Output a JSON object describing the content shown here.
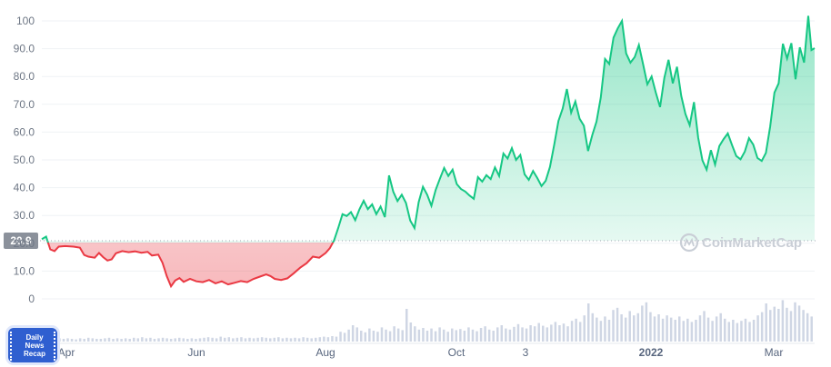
{
  "chart_data": {
    "type": "area",
    "x_ticks": [
      "Apr",
      "Jun",
      "Aug",
      "Oct",
      "3",
      "2022",
      "Mar"
    ],
    "y_ticks": [
      "100",
      "90.0",
      "80.0",
      "70.0",
      "60.0",
      "50.0",
      "40.0",
      "30.0",
      "20.0",
      "10.0",
      "0"
    ],
    "ylim": [
      0,
      100
    ],
    "baseline": {
      "value": 20.9,
      "label": "20.9"
    },
    "x_range_days": [
      0,
      365
    ],
    "series": [
      {
        "points": [
          [
            0,
            21.5
          ],
          [
            2,
            22.4
          ],
          [
            4,
            17.8
          ],
          [
            6,
            17.2
          ],
          [
            8,
            18.8
          ],
          [
            11,
            19.0
          ],
          [
            15,
            18.8
          ],
          [
            18,
            18.4
          ],
          [
            20,
            15.8
          ],
          [
            22,
            15.2
          ],
          [
            25,
            14.8
          ],
          [
            27,
            16.5
          ],
          [
            29,
            15.0
          ],
          [
            31,
            13.8
          ],
          [
            33,
            14.2
          ],
          [
            35,
            16.4
          ],
          [
            38,
            17.2
          ],
          [
            41,
            16.8
          ],
          [
            44,
            17.1
          ],
          [
            47,
            16.6
          ],
          [
            50,
            16.9
          ],
          [
            52,
            15.6
          ],
          [
            55,
            15.9
          ],
          [
            57,
            13.0
          ],
          [
            58,
            10.6
          ],
          [
            59,
            8.2
          ],
          [
            61,
            4.5
          ],
          [
            63,
            6.6
          ],
          [
            65,
            7.5
          ],
          [
            67,
            6.1
          ],
          [
            70,
            7.2
          ],
          [
            73,
            6.3
          ],
          [
            76,
            6.0
          ],
          [
            79,
            6.8
          ],
          [
            82,
            5.6
          ],
          [
            85,
            6.3
          ],
          [
            88,
            5.2
          ],
          [
            91,
            5.8
          ],
          [
            94,
            6.4
          ],
          [
            97,
            6.0
          ],
          [
            100,
            7.2
          ],
          [
            103,
            8.0
          ],
          [
            106,
            8.8
          ],
          [
            108,
            8.2
          ],
          [
            110,
            7.2
          ],
          [
            113,
            6.8
          ],
          [
            116,
            7.4
          ],
          [
            119,
            9.2
          ],
          [
            122,
            11.2
          ],
          [
            125,
            12.8
          ],
          [
            128,
            15.2
          ],
          [
            131,
            14.8
          ],
          [
            134,
            16.5
          ],
          [
            136,
            18.2
          ],
          [
            138,
            21.0
          ],
          [
            140,
            25.5
          ],
          [
            142,
            30.5
          ],
          [
            144,
            29.8
          ],
          [
            146,
            31.2
          ],
          [
            148,
            28.3
          ],
          [
            150,
            32.2
          ],
          [
            152,
            35.3
          ],
          [
            154,
            32.3
          ],
          [
            156,
            34.0
          ],
          [
            158,
            30.5
          ],
          [
            160,
            33.2
          ],
          [
            162,
            29.4
          ],
          [
            164,
            44.4
          ],
          [
            166,
            38.5
          ],
          [
            168,
            35.2
          ],
          [
            170,
            37.5
          ],
          [
            172,
            34.5
          ],
          [
            174,
            28.2
          ],
          [
            176,
            25.5
          ],
          [
            178,
            34.8
          ],
          [
            180,
            40.3
          ],
          [
            182,
            37.5
          ],
          [
            184,
            33.5
          ],
          [
            186,
            39.2
          ],
          [
            188,
            43.2
          ],
          [
            190,
            47.1
          ],
          [
            192,
            44.2
          ],
          [
            194,
            46.5
          ],
          [
            196,
            41.3
          ],
          [
            198,
            39.5
          ],
          [
            200,
            38.6
          ],
          [
            202,
            37.2
          ],
          [
            204,
            36.0
          ],
          [
            206,
            43.8
          ],
          [
            208,
            42.2
          ],
          [
            210,
            44.5
          ],
          [
            212,
            43.1
          ],
          [
            214,
            47.3
          ],
          [
            216,
            44.2
          ],
          [
            218,
            52.3
          ],
          [
            220,
            50.5
          ],
          [
            222,
            54.2
          ],
          [
            224,
            50.0
          ],
          [
            226,
            51.8
          ],
          [
            228,
            44.8
          ],
          [
            230,
            42.8
          ],
          [
            232,
            46.0
          ],
          [
            234,
            43.5
          ],
          [
            236,
            40.6
          ],
          [
            238,
            42.5
          ],
          [
            240,
            47.5
          ],
          [
            242,
            55.5
          ],
          [
            244,
            64.0
          ],
          [
            246,
            68.5
          ],
          [
            248,
            75.5
          ],
          [
            250,
            67.0
          ],
          [
            252,
            71.0
          ],
          [
            254,
            64.8
          ],
          [
            256,
            62.3
          ],
          [
            258,
            53.2
          ],
          [
            260,
            59.0
          ],
          [
            262,
            63.8
          ],
          [
            264,
            72.5
          ],
          [
            266,
            86.3
          ],
          [
            268,
            84.5
          ],
          [
            270,
            94.0
          ],
          [
            272,
            97.3
          ],
          [
            274,
            100.0
          ],
          [
            276,
            88.3
          ],
          [
            278,
            85.0
          ],
          [
            280,
            87.0
          ],
          [
            282,
            91.3
          ],
          [
            284,
            84.3
          ],
          [
            286,
            77.2
          ],
          [
            288,
            80.0
          ],
          [
            290,
            74.2
          ],
          [
            292,
            69.0
          ],
          [
            294,
            79.5
          ],
          [
            296,
            86.0
          ],
          [
            298,
            77.5
          ],
          [
            300,
            83.5
          ],
          [
            302,
            73.0
          ],
          [
            304,
            66.5
          ],
          [
            306,
            62.5
          ],
          [
            308,
            70.8
          ],
          [
            310,
            58.0
          ],
          [
            312,
            49.8
          ],
          [
            314,
            46.5
          ],
          [
            316,
            53.5
          ],
          [
            318,
            48.3
          ],
          [
            320,
            55.0
          ],
          [
            322,
            57.5
          ],
          [
            324,
            59.5
          ],
          [
            326,
            55.3
          ],
          [
            328,
            51.4
          ],
          [
            330,
            50.2
          ],
          [
            332,
            53.0
          ],
          [
            334,
            57.8
          ],
          [
            336,
            55.5
          ],
          [
            338,
            50.7
          ],
          [
            340,
            49.6
          ],
          [
            342,
            52.5
          ],
          [
            344,
            62.0
          ],
          [
            346,
            74.2
          ],
          [
            348,
            77.5
          ],
          [
            350,
            91.8
          ],
          [
            352,
            86.5
          ],
          [
            354,
            92.0
          ],
          [
            356,
            79.0
          ],
          [
            358,
            90.5
          ],
          [
            360,
            85.0
          ],
          [
            362,
            101.8
          ],
          [
            363.5,
            89.5
          ],
          [
            365,
            90.2
          ]
        ]
      }
    ],
    "volume_bars_relative": [
      0.05,
      0.06,
      0.05,
      0.07,
      0.06,
      0.05,
      0.06,
      0.05,
      0.04,
      0.06,
      0.05,
      0.07,
      0.06,
      0.05,
      0.05,
      0.06,
      0.07,
      0.05,
      0.06,
      0.05,
      0.06,
      0.05,
      0.07,
      0.06,
      0.08,
      0.06,
      0.07,
      0.05,
      0.06,
      0.07,
      0.06,
      0.05,
      0.06,
      0.07,
      0.06,
      0.05,
      0.06,
      0.05,
      0.06,
      0.07,
      0.08,
      0.07,
      0.06,
      0.09,
      0.07,
      0.08,
      0.06,
      0.07,
      0.08,
      0.06,
      0.07,
      0.06,
      0.07,
      0.08,
      0.07,
      0.06,
      0.07,
      0.08,
      0.06,
      0.07,
      0.06,
      0.07,
      0.06,
      0.08,
      0.07,
      0.06,
      0.07,
      0.08,
      0.09,
      0.08,
      0.1,
      0.09,
      0.18,
      0.16,
      0.22,
      0.3,
      0.26,
      0.2,
      0.17,
      0.24,
      0.2,
      0.18,
      0.26,
      0.22,
      0.19,
      0.28,
      0.24,
      0.21,
      0.6,
      0.35,
      0.28,
      0.22,
      0.25,
      0.2,
      0.24,
      0.19,
      0.26,
      0.22,
      0.18,
      0.24,
      0.21,
      0.23,
      0.2,
      0.26,
      0.22,
      0.19,
      0.25,
      0.28,
      0.22,
      0.2,
      0.26,
      0.3,
      0.24,
      0.22,
      0.27,
      0.32,
      0.26,
      0.24,
      0.3,
      0.28,
      0.34,
      0.29,
      0.26,
      0.31,
      0.36,
      0.3,
      0.33,
      0.28,
      0.38,
      0.42,
      0.36,
      0.48,
      0.7,
      0.52,
      0.44,
      0.38,
      0.46,
      0.4,
      0.58,
      0.62,
      0.5,
      0.44,
      0.56,
      0.48,
      0.52,
      0.66,
      0.72,
      0.54,
      0.46,
      0.5,
      0.42,
      0.48,
      0.44,
      0.4,
      0.46,
      0.38,
      0.42,
      0.36,
      0.4,
      0.48,
      0.56,
      0.44,
      0.38,
      0.46,
      0.52,
      0.42,
      0.36,
      0.4,
      0.34,
      0.38,
      0.42,
      0.36,
      0.4,
      0.48,
      0.54,
      0.7,
      0.58,
      0.64,
      0.6,
      0.76,
      0.62,
      0.56,
      0.72,
      0.66,
      0.58,
      0.52,
      0.46
    ]
  },
  "watermark": {
    "text": "CoinMarketCap"
  },
  "logo": {
    "line1": "Daily",
    "line2": "News",
    "line3": "Recap"
  },
  "colors": {
    "up": "#16c784",
    "down": "#ea3943",
    "grid": "#eff2f5",
    "baseline_dots": "#a0a6b1",
    "badge": "#8b919b",
    "volume": "#cfd6e4"
  }
}
